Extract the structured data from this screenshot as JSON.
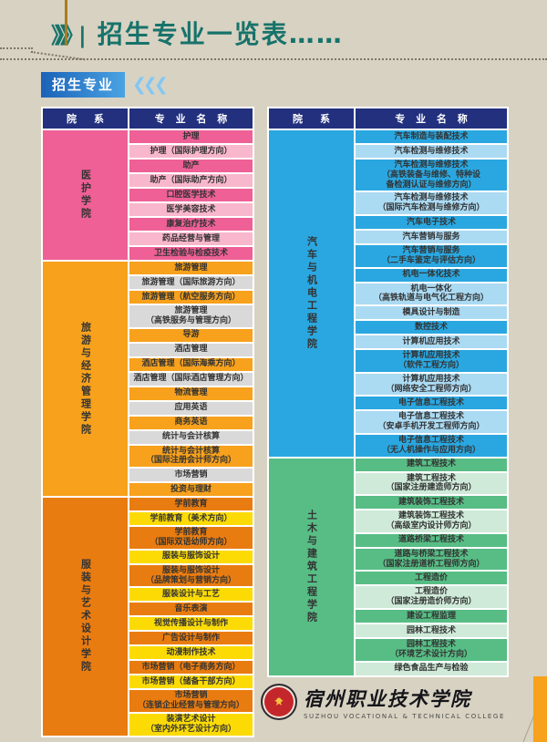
{
  "header": {
    "title": "招生专业一览表……",
    "badge": "招生专业"
  },
  "icons": {
    "title_chevrons": "》》》|",
    "badge_chevrons": "❮❮❮",
    "emblem_star": "★"
  },
  "table_header": {
    "dept": "院　系",
    "major": "专 业 名 称"
  },
  "colors": {
    "background": "#d8d2c2",
    "title_teal": "#17736b",
    "table_header_bg": "#22307e",
    "badge_gradient_start": "#1b63b8",
    "badge_gradient_end": "#4aa3e2",
    "accent_orange_bar": "#f7a11c",
    "themes": {
      "pink": {
        "dept": "#ee6096",
        "a": "#ee6096",
        "b": "#f8b7cc"
      },
      "orange": {
        "dept": "#f7a11c",
        "a": "#f7a11c",
        "b": "#d9d9d9"
      },
      "orange2": {
        "dept": "#e97c10",
        "a": "#e97c10",
        "b": "#fcdb05"
      },
      "blue": {
        "dept": "#2aa7e0",
        "a": "#2aa7e0",
        "b": "#abdaf3"
      },
      "green": {
        "dept": "#57bd85",
        "a": "#57bd85",
        "b": "#cfead9"
      }
    }
  },
  "left_table": {
    "sections": [
      {
        "department": "医护学院",
        "theme": "pink",
        "majors": [
          {
            "text": "护理",
            "shade": "a"
          },
          {
            "text": "护理（国际护理方向）",
            "shade": "b"
          },
          {
            "text": "助产",
            "shade": "a"
          },
          {
            "text": "助产（国际助产方向）",
            "shade": "b"
          },
          {
            "text": "口腔医学技术",
            "shade": "a"
          },
          {
            "text": "医学美容技术",
            "shade": "b"
          },
          {
            "text": "康复治疗技术",
            "shade": "a"
          },
          {
            "text": "药品经营与管理",
            "shade": "b"
          },
          {
            "text": "卫生检验与检疫技术",
            "shade": "a"
          }
        ]
      },
      {
        "department": "旅游与经济管理学院",
        "theme": "orange",
        "majors": [
          {
            "text": "旅游管理",
            "shade": "a"
          },
          {
            "text": "旅游管理（国际旅游方向）",
            "shade": "b"
          },
          {
            "text": "旅游管理（航空服务方向）",
            "shade": "a"
          },
          {
            "text": "旅游管理\n（高铁服务与管理方向）",
            "shade": "b"
          },
          {
            "text": "导游",
            "shade": "a"
          },
          {
            "text": "酒店管理",
            "shade": "b"
          },
          {
            "text": "酒店管理（国际海乘方向）",
            "shade": "a"
          },
          {
            "text": "酒店管理（国际酒店管理方向）",
            "shade": "b"
          },
          {
            "text": "物流管理",
            "shade": "a"
          },
          {
            "text": "应用英语",
            "shade": "b"
          },
          {
            "text": "商务英语",
            "shade": "a"
          },
          {
            "text": "统计与会计核算",
            "shade": "b"
          },
          {
            "text": "统计与会计核算\n（国际注册会计师方向）",
            "shade": "a"
          },
          {
            "text": "市场营销",
            "shade": "b"
          },
          {
            "text": "投资与理财",
            "shade": "a"
          }
        ]
      },
      {
        "department": "服装与艺术设计学院",
        "theme": "orange2",
        "majors": [
          {
            "text": "学前教育",
            "shade": "a"
          },
          {
            "text": "学前教育（美术方向）",
            "shade": "b"
          },
          {
            "text": "学前教育\n（国际双语幼师方向）",
            "shade": "a"
          },
          {
            "text": "服装与服饰设计",
            "shade": "b"
          },
          {
            "text": "服装与服饰设计\n（品牌策划与营销方向）",
            "shade": "a"
          },
          {
            "text": "服装设计与工艺",
            "shade": "b"
          },
          {
            "text": "音乐表演",
            "shade": "a"
          },
          {
            "text": "视觉传播设计与制作",
            "shade": "b"
          },
          {
            "text": "广告设计与制作",
            "shade": "a"
          },
          {
            "text": "动漫制作技术",
            "shade": "b"
          },
          {
            "text": "市场营销（电子商务方向）",
            "shade": "a"
          },
          {
            "text": "市场营销（储备干部方向）",
            "shade": "b"
          },
          {
            "text": "市场营销\n（连锁企业经营与管理方向）",
            "shade": "a"
          },
          {
            "text": "装潢艺术设计\n（室内外环艺设计方向）",
            "shade": "b"
          }
        ]
      }
    ]
  },
  "right_table": {
    "sections": [
      {
        "department": "汽车与机电工程学院",
        "theme": "blue",
        "majors": [
          {
            "text": "汽车制造与装配技术",
            "shade": "a"
          },
          {
            "text": "汽车检测与维修技术",
            "shade": "b"
          },
          {
            "text": "汽车检测与维修技术\n（高铁装备与维修、特种设\n备检测认证与维修方向）",
            "shade": "a"
          },
          {
            "text": "汽车检测与维修技术\n（国际汽车检测与维修方向）",
            "shade": "b"
          },
          {
            "text": "汽车电子技术",
            "shade": "a"
          },
          {
            "text": "汽车营销与服务",
            "shade": "b"
          },
          {
            "text": "汽车营销与服务\n（二手车鉴定与评估方向）",
            "shade": "a"
          },
          {
            "text": "机电一体化技术",
            "shade": "a"
          },
          {
            "text": "机电一体化\n（高铁轨道与电气化工程方向）",
            "shade": "b"
          },
          {
            "text": "模具设计与制造",
            "shade": "b"
          },
          {
            "text": "数控技术",
            "shade": "a"
          },
          {
            "text": "计算机应用技术",
            "shade": "b"
          },
          {
            "text": "计算机应用技术\n（软件工程方向）",
            "shade": "a"
          },
          {
            "text": "计算机应用技术\n（网络安全工程师方向）",
            "shade": "b"
          },
          {
            "text": "电子信息工程技术",
            "shade": "a"
          },
          {
            "text": "电子信息工程技术\n（安卓手机开发工程师方向）",
            "shade": "b"
          },
          {
            "text": "电子信息工程技术\n（无人机操作与应用方向）",
            "shade": "a"
          }
        ]
      },
      {
        "department": "土木与建筑工程学院",
        "theme": "green",
        "majors": [
          {
            "text": "建筑工程技术",
            "shade": "a"
          },
          {
            "text": "建筑工程技术\n（国家注册建造师方向）",
            "shade": "b"
          },
          {
            "text": "建筑装饰工程技术",
            "shade": "a"
          },
          {
            "text": "建筑装饰工程技术\n（高级室内设计师方向）",
            "shade": "b"
          },
          {
            "text": "道路桥梁工程技术",
            "shade": "a"
          },
          {
            "text": "道路与桥梁工程技术\n（国家注册道桥工程师方向）",
            "shade": "a"
          },
          {
            "text": "工程造价",
            "shade": "a"
          },
          {
            "text": "工程造价\n（国家注册造价师方向）",
            "shade": "b"
          },
          {
            "text": "建设工程监理",
            "shade": "a"
          },
          {
            "text": "园林工程技术",
            "shade": "b"
          },
          {
            "text": "园林工程技术\n（环境艺术设计方向）",
            "shade": "a"
          },
          {
            "text": "绿色食品生产与检验",
            "shade": "b"
          }
        ]
      }
    ]
  },
  "footer": {
    "college_cn": "宿州职业技术学院",
    "college_en": "SUZHOU VOCATIONAL & TECHNICAL COLLEGE"
  }
}
